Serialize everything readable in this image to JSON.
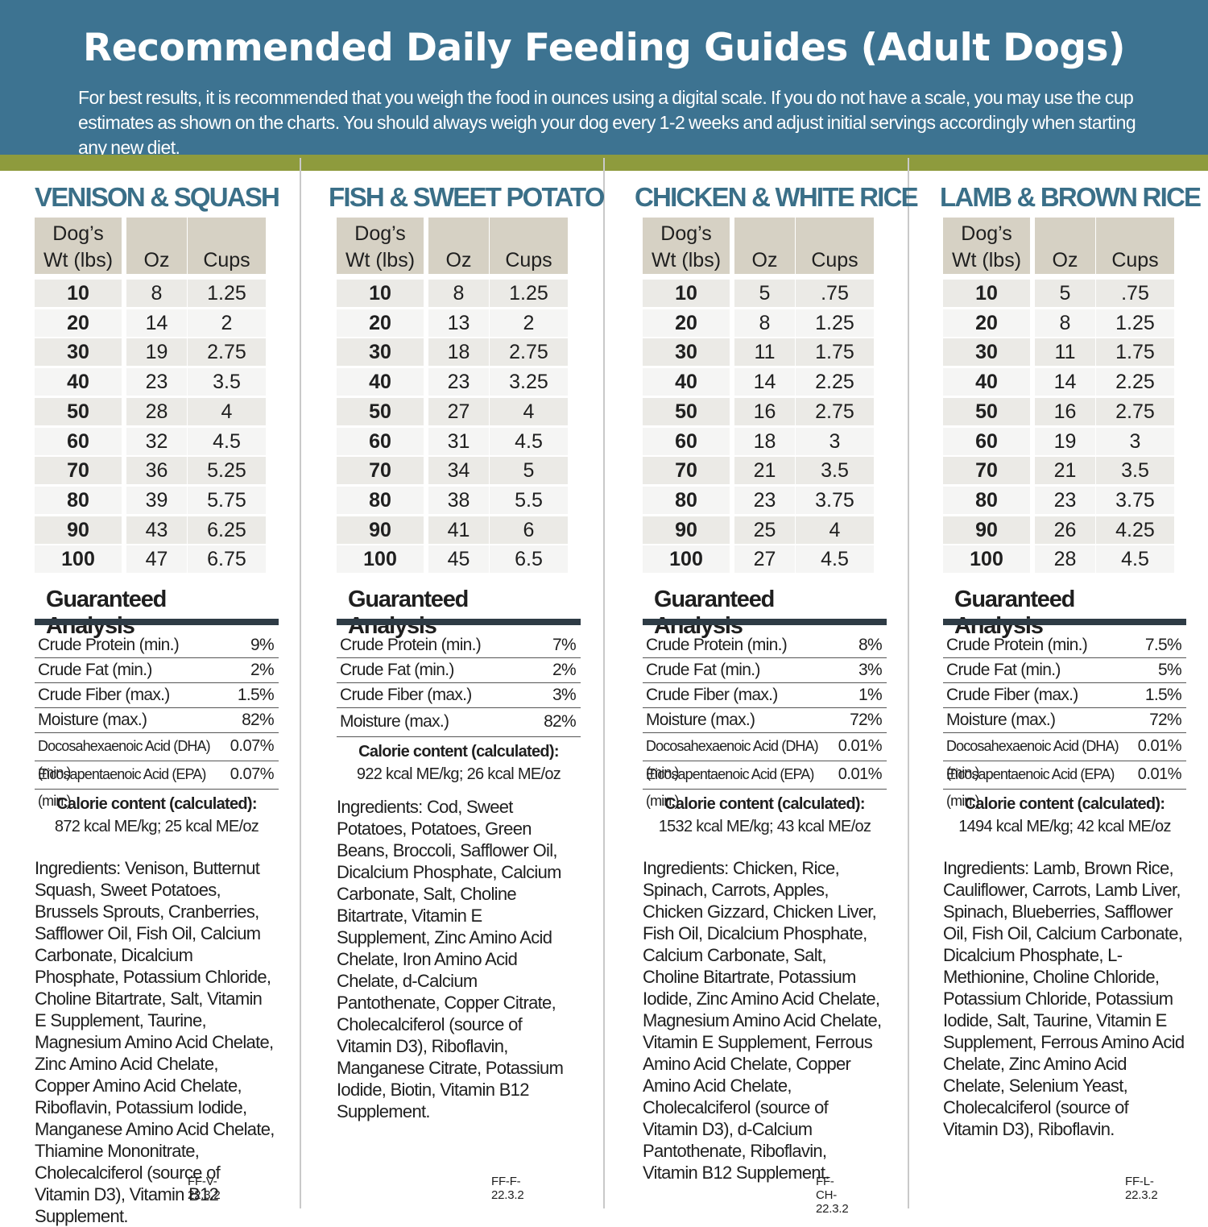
{
  "header": {
    "title": "Recommended Daily Feeding Guides (Adult Dogs)",
    "subtitle": "For best results, it is recommended that you weigh the food in ounces using a digital scale. If you do not have a scale, you may use the cup estimates as shown on the charts. You should always weigh your dog every 1-2 weeks and adjust initial servings accordingly when starting any new diet."
  },
  "table_headers": {
    "wt_line1": "Dog’s",
    "wt_line2": "Wt (lbs)",
    "oz": "Oz",
    "cups": "Cups"
  },
  "ga_title": "Guaranteed Analysis",
  "recipes": [
    {
      "title": "VENISON & SQUASH",
      "rows": [
        {
          "wt": "10",
          "oz": "8",
          "cups": "1.25"
        },
        {
          "wt": "20",
          "oz": "14",
          "cups": "2"
        },
        {
          "wt": "30",
          "oz": "19",
          "cups": "2.75"
        },
        {
          "wt": "40",
          "oz": "23",
          "cups": "3.5"
        },
        {
          "wt": "50",
          "oz": "28",
          "cups": "4"
        },
        {
          "wt": "60",
          "oz": "32",
          "cups": "4.5"
        },
        {
          "wt": "70",
          "oz": "36",
          "cups": "5.25"
        },
        {
          "wt": "80",
          "oz": "39",
          "cups": "5.75"
        },
        {
          "wt": "90",
          "oz": "43",
          "cups": "6.25"
        },
        {
          "wt": "100",
          "oz": "47",
          "cups": "6.75"
        }
      ],
      "analysis": [
        {
          "label": "Crude Protein (min.)",
          "value": "9%"
        },
        {
          "label": "Crude Fat (min.)",
          "value": "2%"
        },
        {
          "label": "Crude Fiber (max.)",
          "value": "1.5%"
        },
        {
          "label": "Moisture (max.)",
          "value": "82%"
        },
        {
          "label": "Docosahexaenoic Acid (DHA) (min.)",
          "value": "0.07%"
        },
        {
          "label": "Eicosapentaenoic Acid (EPA) (min.)",
          "value": "0.07%"
        }
      ],
      "calorie_label": "Calorie content (calculated):",
      "calorie_value": "872 kcal ME/kg;  25 kcal ME/oz",
      "ingredients": "Ingredients: Venison, Butternut Squash, Sweet Potatoes, Brussels Sprouts, Cranberries, Safflower Oil, Fish Oil, Calcium Carbonate, Dicalcium Phosphate, Potassium Chloride, Choline Bitartrate, Salt, Vitamin E Supplement, Taurine, Magnesium Amino Acid Chelate, Zinc Amino Acid Chelate, Copper Amino Acid Chelate, Riboflavin, Potassium Iodide, Manganese Amino Acid Chelate, Thiamine Mononitrate, Cholecalciferol (source of Vitamin D3), Vitamin B12 Supplement.",
      "code": "FF-V-22.3.2"
    },
    {
      "title": "FISH & SWEET POTATO",
      "rows": [
        {
          "wt": "10",
          "oz": "8",
          "cups": "1.25"
        },
        {
          "wt": "20",
          "oz": "13",
          "cups": "2"
        },
        {
          "wt": "30",
          "oz": "18",
          "cups": "2.75"
        },
        {
          "wt": "40",
          "oz": "23",
          "cups": "3.25"
        },
        {
          "wt": "50",
          "oz": "27",
          "cups": "4"
        },
        {
          "wt": "60",
          "oz": "31",
          "cups": "4.5"
        },
        {
          "wt": "70",
          "oz": "34",
          "cups": "5"
        },
        {
          "wt": "80",
          "oz": "38",
          "cups": "5.5"
        },
        {
          "wt": "90",
          "oz": "41",
          "cups": "6"
        },
        {
          "wt": "100",
          "oz": "45",
          "cups": "6.5"
        }
      ],
      "analysis": [
        {
          "label": "Crude Protein (min.)",
          "value": "7%"
        },
        {
          "label": "Crude Fat (min.)",
          "value": "2%"
        },
        {
          "label": "Crude Fiber (max.)",
          "value": "3%"
        },
        {
          "label": "Moisture (max.)",
          "value": "82%"
        }
      ],
      "calorie_label": "Calorie content (calculated):",
      "calorie_value": "922 kcal ME/kg;  26 kcal ME/oz",
      "ingredients": "Ingredients: Cod, Sweet Potatoes, Potatoes, Green Beans, Broccoli, Safflower Oil, Dicalcium Phosphate, Calcium Carbonate, Salt, Choline Bitartrate, Vitamin E Supplement, Zinc Amino Acid Chelate, Iron Amino Acid Chelate, d-Calcium Pantothenate, Copper Citrate, Cholecalciferol (source of Vitamin D3), Riboflavin, Manganese Citrate, Potassium Iodide, Biotin, Vitamin B12 Supplement.",
      "code": "FF-F-22.3.2"
    },
    {
      "title": "CHICKEN & WHITE RICE",
      "rows": [
        {
          "wt": "10",
          "oz": "5",
          "cups": ".75"
        },
        {
          "wt": "20",
          "oz": "8",
          "cups": "1.25"
        },
        {
          "wt": "30",
          "oz": "11",
          "cups": "1.75"
        },
        {
          "wt": "40",
          "oz": "14",
          "cups": "2.25"
        },
        {
          "wt": "50",
          "oz": "16",
          "cups": "2.75"
        },
        {
          "wt": "60",
          "oz": "18",
          "cups": "3"
        },
        {
          "wt": "70",
          "oz": "21",
          "cups": "3.5"
        },
        {
          "wt": "80",
          "oz": "23",
          "cups": "3.75"
        },
        {
          "wt": "90",
          "oz": "25",
          "cups": "4"
        },
        {
          "wt": "100",
          "oz": "27",
          "cups": "4.5"
        }
      ],
      "analysis": [
        {
          "label": "Crude Protein (min.)",
          "value": "8%"
        },
        {
          "label": "Crude Fat (min.)",
          "value": "3%"
        },
        {
          "label": "Crude Fiber (max.)",
          "value": "1%"
        },
        {
          "label": "Moisture (max.)",
          "value": "72%"
        },
        {
          "label": "Docosahexaenoic Acid (DHA) (min.)",
          "value": "0.01%"
        },
        {
          "label": "Eicosapentaenoic Acid (EPA) (min.)",
          "value": "0.01%"
        }
      ],
      "calorie_label": "Calorie content (calculated):",
      "calorie_value": "1532 kcal ME/kg;  43 kcal ME/oz",
      "ingredients": "Ingredients: Chicken, Rice, Spinach, Carrots, Apples, Chicken Gizzard, Chicken Liver, Fish Oil, Dicalcium Phosphate, Calcium Carbonate, Salt, Choline Bitartrate, Potassium Iodide, Zinc Amino Acid Chelate, Magnesium Amino Acid Chelate, Vitamin E Supplement, Ferrous Amino Acid Chelate, Copper Amino Acid Chelate, Cholecalciferol (source of Vitamin D3), d-Calcium Pantothenate, Riboflavin, Vitamin B12 Supplement.",
      "code": "FF-CH-22.3.2"
    },
    {
      "title": "LAMB &  BROWN RICE",
      "rows": [
        {
          "wt": "10",
          "oz": "5",
          "cups": ".75"
        },
        {
          "wt": "20",
          "oz": "8",
          "cups": "1.25"
        },
        {
          "wt": "30",
          "oz": "11",
          "cups": "1.75"
        },
        {
          "wt": "40",
          "oz": "14",
          "cups": "2.25"
        },
        {
          "wt": "50",
          "oz": "16",
          "cups": "2.75"
        },
        {
          "wt": "60",
          "oz": "19",
          "cups": "3"
        },
        {
          "wt": "70",
          "oz": "21",
          "cups": "3.5"
        },
        {
          "wt": "80",
          "oz": "23",
          "cups": "3.75"
        },
        {
          "wt": "90",
          "oz": "26",
          "cups": "4.25"
        },
        {
          "wt": "100",
          "oz": "28",
          "cups": "4.5"
        }
      ],
      "analysis": [
        {
          "label": "Crude Protein (min.)",
          "value": "7.5%"
        },
        {
          "label": "Crude Fat (min.)",
          "value": "5%"
        },
        {
          "label": "Crude Fiber (max.)",
          "value": "1.5%"
        },
        {
          "label": "Moisture (max.)",
          "value": "72%"
        },
        {
          "label": "Docosahexaenoic Acid (DHA) (min.)",
          "value": "0.01%"
        },
        {
          "label": "Eicosapentaenoic Acid (EPA) (min.)",
          "value": "0.01%"
        }
      ],
      "calorie_label": "Calorie content (calculated):",
      "calorie_value": "1494 kcal ME/kg;  42 kcal ME/oz",
      "ingredients": "Ingredients: Lamb, Brown Rice, Cauliflower, Carrots, Lamb Liver, Spinach, Blueberries, Safflower Oil, Fish Oil, Calcium Carbonate, Dicalcium Phosphate, L-Methionine, Choline Chloride, Potassium Chloride, Potassium Iodide, Salt, Taurine, Vitamin E Supplement, Ferrous Amino Acid Chelate, Zinc Amino Acid Chelate, Selenium Yeast, Cholecalciferol (source of Vitamin D3), Riboflavin.",
      "code": "FF-L-22.3.2"
    }
  ]
}
